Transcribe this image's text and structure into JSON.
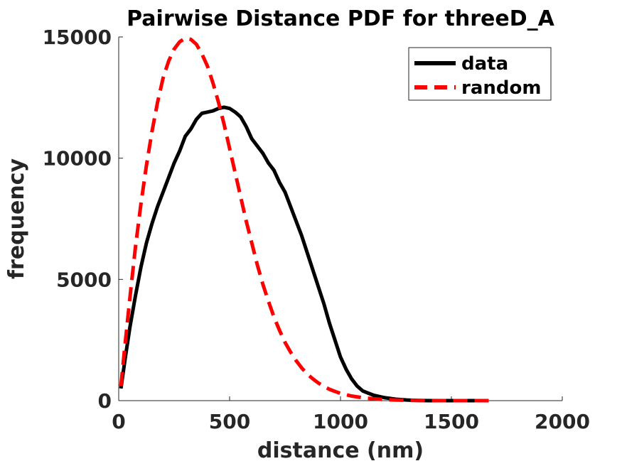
{
  "chart_data": {
    "type": "line",
    "title": "Pairwise Distance PDF for threeD_A",
    "xlabel": "distance (nm)",
    "ylabel": "frequency",
    "xlim": [
      0,
      2000
    ],
    "ylim": [
      0,
      15000
    ],
    "xticks": [
      "0",
      "500",
      "1000",
      "1500",
      "2000"
    ],
    "yticks": [
      "0",
      "5000",
      "10000",
      "15000"
    ],
    "legend": {
      "placement": "top-right",
      "entries": [
        "data",
        "random"
      ]
    },
    "grid": false,
    "series": [
      {
        "name": "data",
        "color": "#000000",
        "style": "solid",
        "x": [
          10,
          30,
          50,
          75,
          100,
          125,
          150,
          175,
          200,
          225,
          250,
          275,
          300,
          325,
          350,
          375,
          400,
          425,
          450,
          475,
          500,
          525,
          550,
          575,
          600,
          625,
          650,
          675,
          700,
          725,
          750,
          775,
          800,
          825,
          850,
          875,
          900,
          925,
          950,
          975,
          1000,
          1025,
          1050,
          1075,
          1100,
          1150,
          1200,
          1250,
          1300,
          1350,
          1400,
          1450,
          1500,
          1550,
          1600,
          1650
        ],
        "y": [
          500,
          1800,
          3000,
          4300,
          5500,
          6500,
          7300,
          8000,
          8600,
          9200,
          9800,
          10300,
          10900,
          11200,
          11600,
          11850,
          11900,
          11950,
          12050,
          12100,
          12050,
          11900,
          11700,
          11300,
          10800,
          10500,
          10200,
          9800,
          9500,
          9000,
          8600,
          8000,
          7400,
          6800,
          6100,
          5400,
          4700,
          4000,
          3200,
          2500,
          1800,
          1300,
          900,
          600,
          400,
          220,
          120,
          60,
          25,
          10,
          0,
          0,
          0,
          0,
          0,
          0
        ]
      },
      {
        "name": "random",
        "color": "#ff0000",
        "style": "dashed",
        "x": [
          10,
          25,
          50,
          75,
          100,
          125,
          150,
          175,
          200,
          225,
          250,
          275,
          300,
          325,
          350,
          375,
          400,
          425,
          450,
          475,
          500,
          525,
          550,
          575,
          600,
          625,
          650,
          675,
          700,
          725,
          750,
          775,
          800,
          825,
          850,
          875,
          900,
          925,
          950,
          975,
          1000,
          1050,
          1100,
          1150,
          1200,
          1250,
          1300,
          1350,
          1400,
          1500,
          1600,
          1700
        ],
        "y": [
          600,
          2000,
          4200,
          6300,
          8100,
          9700,
          11100,
          12300,
          13300,
          14000,
          14500,
          14800,
          14950,
          14900,
          14700,
          14300,
          13800,
          13100,
          12300,
          11400,
          10400,
          9400,
          8400,
          7400,
          6500,
          5600,
          4800,
          4100,
          3450,
          2900,
          2400,
          2000,
          1650,
          1350,
          1100,
          900,
          730,
          590,
          470,
          380,
          300,
          190,
          120,
          75,
          45,
          25,
          14,
          8,
          4,
          0,
          0,
          0
        ]
      }
    ]
  }
}
